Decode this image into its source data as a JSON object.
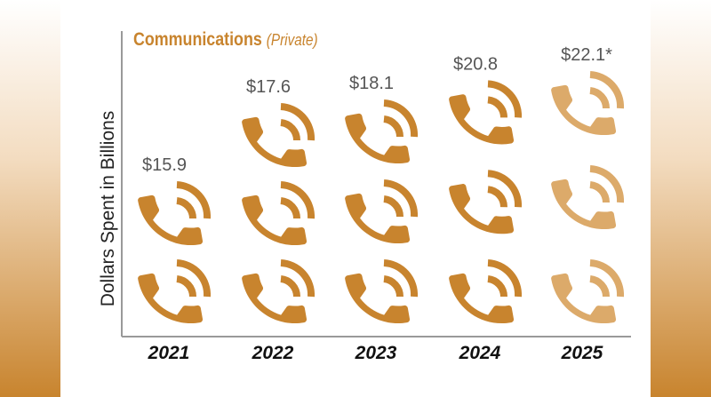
{
  "chart_data": {
    "type": "pictograph",
    "title": "Communications",
    "subtitle": "(Private)",
    "ylabel": "Dollars Spent in Billions",
    "xlabel": "",
    "categories": [
      "2021",
      "2022",
      "2023",
      "2024",
      "2025"
    ],
    "values": [
      15.9,
      17.6,
      18.1,
      20.8,
      22.1
    ],
    "value_labels": [
      "$15.9",
      "$17.6",
      "$18.1",
      "$20.8",
      "$22.1*"
    ],
    "icons": [
      2,
      3,
      3,
      3,
      3
    ],
    "projected": [
      false,
      false,
      false,
      false,
      true
    ],
    "icon": "phone-icon",
    "colors": {
      "actual": "#c8842e",
      "projected": "#dcaa6a"
    }
  }
}
